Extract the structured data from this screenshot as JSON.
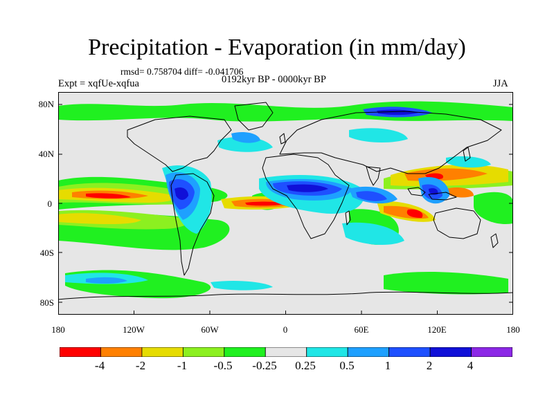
{
  "header": {
    "title": "Precipitation - Evaporation (in mm/day)",
    "stats": "rmsd= 0.758704 diff= -0.041706",
    "period": "0192kyr BP - 0000kyr BP",
    "experiment": "Expt = xqfUe-xqfua",
    "season": "JJA"
  },
  "map": {
    "y_tick_labels": [
      "80N",
      "40N",
      "0",
      "40S",
      "80S"
    ],
    "x_tick_labels": [
      "180",
      "120W",
      "60W",
      "0",
      "60E",
      "120E",
      "180"
    ],
    "background_color": "#e6e6e6",
    "coastline_color": "#000000"
  },
  "colorbar": {
    "labels": [
      "-4",
      "-2",
      "-1",
      "-0.5",
      "-0.25",
      "0.25",
      "0.5",
      "1",
      "2",
      "4"
    ],
    "colors": [
      "#ff0000",
      "#ff8000",
      "#e6dc00",
      "#8cf020",
      "#20f020",
      "#e6e6e6",
      "#20e6e6",
      "#1ea0ff",
      "#1e50ff",
      "#1010d8",
      "#8c28e6"
    ]
  }
}
